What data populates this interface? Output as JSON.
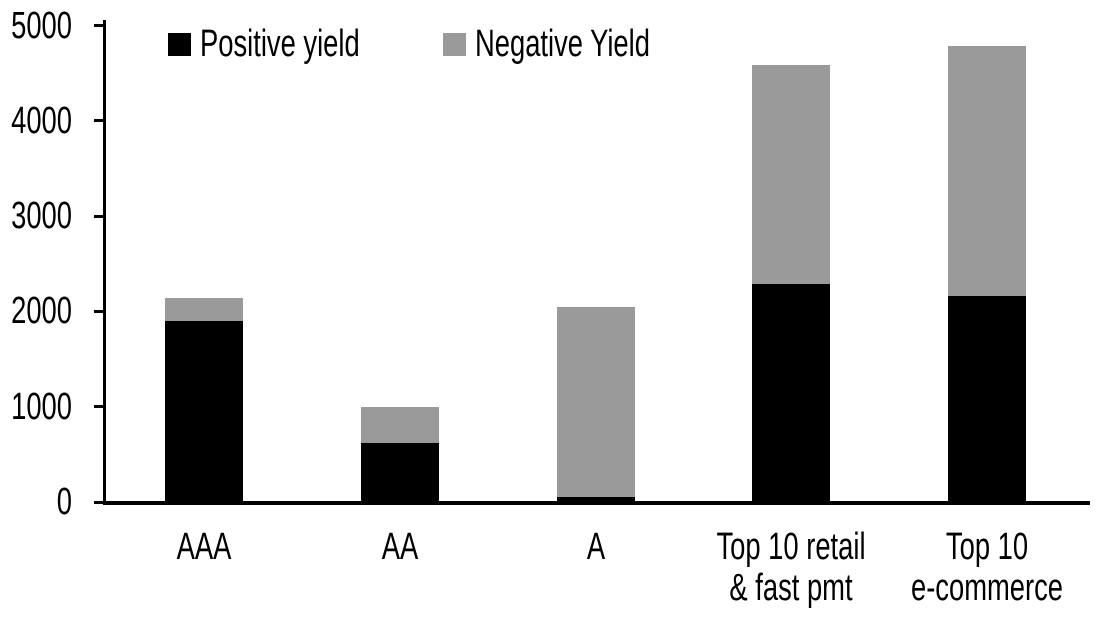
{
  "chart_data": {
    "type": "bar",
    "stacked": true,
    "title": "",
    "xlabel": "",
    "ylabel": "",
    "categories": [
      "AAA",
      "AA",
      "A",
      "Top 10 retail\n& fast pmt",
      "Top 10\ne-commerce"
    ],
    "series": [
      {
        "name": "Positive yield",
        "color": "#000000",
        "values": [
          1900,
          620,
          50,
          2290,
          2160
        ]
      },
      {
        "name": "Negative Yield",
        "color": "#9a9a9a",
        "values": [
          240,
          380,
          2000,
          2300,
          2630
        ]
      }
    ],
    "totals": [
      2140,
      1000,
      2050,
      4590,
      4790
    ],
    "ylim": [
      0,
      5000
    ],
    "yticks": [
      0,
      1000,
      2000,
      3000,
      4000,
      5000
    ],
    "grid": false,
    "legend_position": "top-left-inside",
    "colors": {
      "background": "#ffffff",
      "axis": "#000000"
    }
  }
}
